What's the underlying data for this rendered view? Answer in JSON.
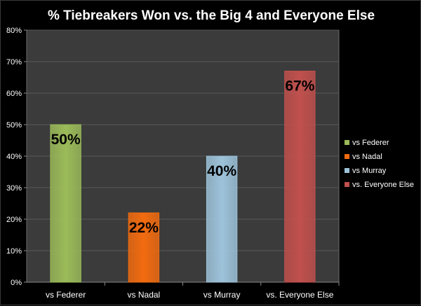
{
  "chart_data": {
    "type": "bar",
    "title": "% Tiebreakers Won vs. the Big 4 and Everyone Else",
    "categories": [
      "vs Federer",
      "vs Nadal",
      "vs Murray",
      "vs. Everyone Else"
    ],
    "values": [
      50,
      22,
      40,
      67
    ],
    "data_labels": [
      "50%",
      "22%",
      "40%",
      "67%"
    ],
    "colors": [
      "#9BBB59",
      "#F26B0F",
      "#9DC3DA",
      "#C0504D"
    ],
    "ylim": [
      0,
      80
    ],
    "yticks": [
      0,
      10,
      20,
      30,
      40,
      50,
      60,
      70,
      80
    ],
    "ytick_labels": [
      "0%",
      "10%",
      "20%",
      "30%",
      "40%",
      "50%",
      "60%",
      "70%",
      "80%"
    ],
    "xlabel": "",
    "ylabel": "",
    "grid": true,
    "legend": {
      "position": "right",
      "entries": [
        "vs Federer",
        "vs Nadal",
        "vs Murray",
        "vs. Everyone Else"
      ]
    },
    "style": {
      "background": "#000000",
      "plot_background": "#3B3B3B",
      "gridline_color": "#5A5A5A",
      "text_color": "#FFFFFF",
      "data_label_color": "#000000"
    }
  }
}
